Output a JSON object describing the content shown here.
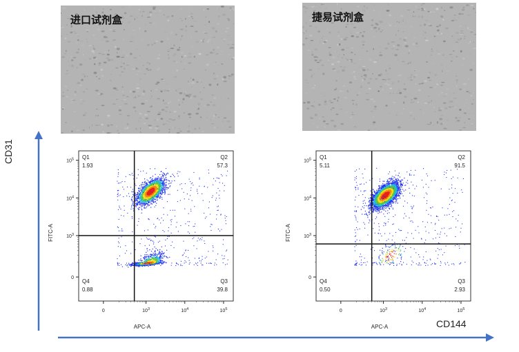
{
  "figure": {
    "panels": [
      {
        "label": "进口试剂盒"
      },
      {
        "label": "捷易试剂盒"
      }
    ],
    "y_axis_label": "CD31",
    "x_axis_label": "CD144",
    "arrow_color": "#4472c4"
  },
  "chart_data": [
    {
      "type": "scatter",
      "xlabel": "APC-A",
      "ylabel": "FITC-A",
      "x_ticks": [
        "0",
        "10^3",
        "10^4",
        "10^5"
      ],
      "y_ticks": [
        "0",
        "10^3",
        "10^4",
        "10^5"
      ],
      "quadrants": [
        {
          "name": "Q1",
          "percent": "1.93"
        },
        {
          "name": "Q2",
          "percent": "57.3"
        },
        {
          "name": "Q3",
          "percent": "39.8"
        },
        {
          "name": "Q4",
          "percent": "0.88"
        }
      ],
      "gate": {
        "x": 500,
        "y": 1000
      },
      "populations": [
        {
          "x": 1300,
          "y": 15000,
          "share": 0.573
        },
        {
          "x": 1100,
          "y": 150,
          "share": 0.398
        }
      ]
    },
    {
      "type": "scatter",
      "xlabel": "APC-A",
      "ylabel": "FITC-A",
      "x_ticks": [
        "0",
        "10^3",
        "10^4",
        "10^5"
      ],
      "y_ticks": [
        "0",
        "10^3",
        "10^4",
        "10^5"
      ],
      "quadrants": [
        {
          "name": "Q1",
          "percent": "5.11"
        },
        {
          "name": "Q2",
          "percent": "91.5"
        },
        {
          "name": "Q3",
          "percent": "2.93"
        },
        {
          "name": "Q4",
          "percent": "0.50"
        }
      ],
      "gate": {
        "x": 500,
        "y": 600
      },
      "populations": [
        {
          "x": 1100,
          "y": 12000,
          "share": 0.915
        },
        {
          "x": 1500,
          "y": 300,
          "share": 0.029
        }
      ]
    }
  ]
}
